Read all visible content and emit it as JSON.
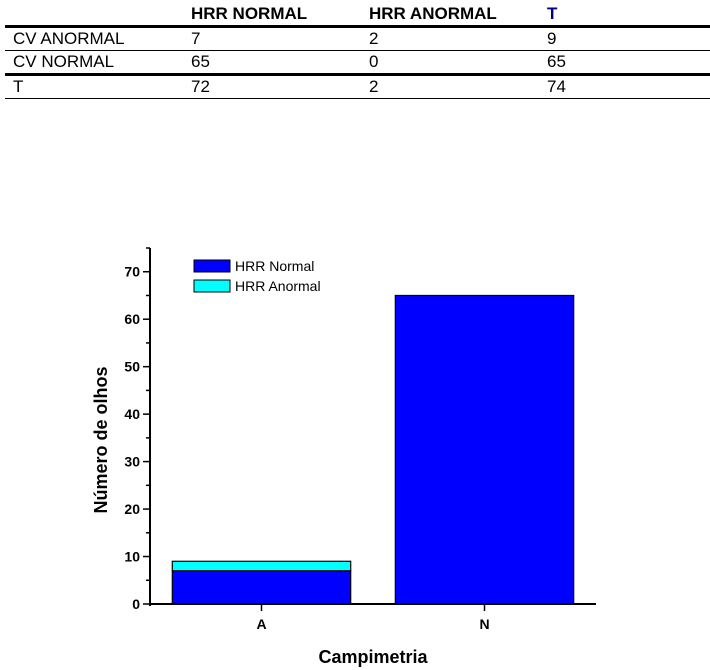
{
  "table": {
    "headers": [
      "",
      "HRR NORMAL",
      "HRR ANORMAL",
      "T"
    ],
    "rows": [
      {
        "label": "CV ANORMAL",
        "hrr_normal": "7",
        "hrr_anormal": "2",
        "total": "9"
      },
      {
        "label": "CV NORMAL",
        "hrr_normal": "65",
        "hrr_anormal": "0",
        "total": "65"
      },
      {
        "label": "T",
        "hrr_normal": "72",
        "hrr_anormal": "2",
        "total": "74"
      }
    ]
  },
  "chart_data": {
    "type": "bar",
    "stacked": true,
    "categories": [
      "A",
      "N"
    ],
    "series": [
      {
        "name": "HRR Normal",
        "values": [
          7,
          65
        ],
        "color": "#0000ff"
      },
      {
        "name": "HRR Anormal",
        "values": [
          2,
          0
        ],
        "color": "#00ffff"
      }
    ],
    "xlabel": "Campimetria",
    "ylabel": "Número de olhos",
    "ylim": [
      0,
      75
    ],
    "yticks": [
      0,
      10,
      20,
      30,
      40,
      50,
      60,
      70
    ],
    "grid": false,
    "legend": "top-left"
  }
}
